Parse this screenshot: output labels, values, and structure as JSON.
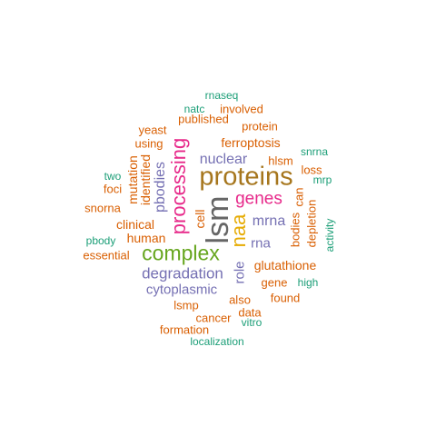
{
  "words": [
    {
      "text": "lsm",
      "color": "#666666"
    },
    {
      "text": "proteins",
      "color": "#a6761d"
    },
    {
      "text": "complex",
      "color": "#66a61e"
    },
    {
      "text": "processing",
      "color": "#e7298a"
    },
    {
      "text": "naa",
      "color": "#e6ab02"
    },
    {
      "text": "genes",
      "color": "#e7298a"
    },
    {
      "text": "degradation",
      "color": "#7570b3"
    },
    {
      "text": "nuclear",
      "color": "#7570b3"
    },
    {
      "text": "mrna",
      "color": "#7570b3"
    },
    {
      "text": "pbodies",
      "color": "#7570b3"
    },
    {
      "text": "cytoplasmic",
      "color": "#7570b3"
    },
    {
      "text": "rna",
      "color": "#7570b3"
    },
    {
      "text": "role",
      "color": "#7570b3"
    },
    {
      "text": "ferroptosis",
      "color": "#d95f02"
    },
    {
      "text": "glutathione",
      "color": "#d95f02"
    },
    {
      "text": "identified",
      "color": "#d95f02"
    },
    {
      "text": "mutation",
      "color": "#d95f02"
    },
    {
      "text": "clinical",
      "color": "#d95f02"
    },
    {
      "text": "human",
      "color": "#d95f02"
    },
    {
      "text": "cell",
      "color": "#d95f02"
    },
    {
      "text": "gene",
      "color": "#d95f02"
    },
    {
      "text": "hlsm",
      "color": "#d95f02"
    },
    {
      "text": "bodies",
      "color": "#d95f02"
    },
    {
      "text": "can",
      "color": "#d95f02"
    },
    {
      "text": "depletion",
      "color": "#d95f02"
    },
    {
      "text": "loss",
      "color": "#d95f02"
    },
    {
      "text": "protein",
      "color": "#d95f02"
    },
    {
      "text": "published",
      "color": "#d95f02"
    },
    {
      "text": "involved",
      "color": "#d95f02"
    },
    {
      "text": "yeast",
      "color": "#d95f02"
    },
    {
      "text": "using",
      "color": "#d95f02"
    },
    {
      "text": "foci",
      "color": "#d95f02"
    },
    {
      "text": "snorna",
      "color": "#d95f02"
    },
    {
      "text": "essential",
      "color": "#d95f02"
    },
    {
      "text": "found",
      "color": "#d95f02"
    },
    {
      "text": "also",
      "color": "#d95f02"
    },
    {
      "text": "lsmp",
      "color": "#d95f02"
    },
    {
      "text": "data",
      "color": "#d95f02"
    },
    {
      "text": "cancer",
      "color": "#d95f02"
    },
    {
      "text": "formation",
      "color": "#d95f02"
    },
    {
      "text": "rnaseq",
      "color": "#1b9e77"
    },
    {
      "text": "natc",
      "color": "#1b9e77"
    },
    {
      "text": "snrna",
      "color": "#1b9e77"
    },
    {
      "text": "mrp",
      "color": "#1b9e77"
    },
    {
      "text": "two",
      "color": "#1b9e77"
    },
    {
      "text": "pbody",
      "color": "#1b9e77"
    },
    {
      "text": "activity",
      "color": "#1b9e77"
    },
    {
      "text": "high",
      "color": "#1b9e77"
    },
    {
      "text": "vitro",
      "color": "#1b9e77"
    },
    {
      "text": "localization",
      "color": "#1b9e77"
    }
  ]
}
